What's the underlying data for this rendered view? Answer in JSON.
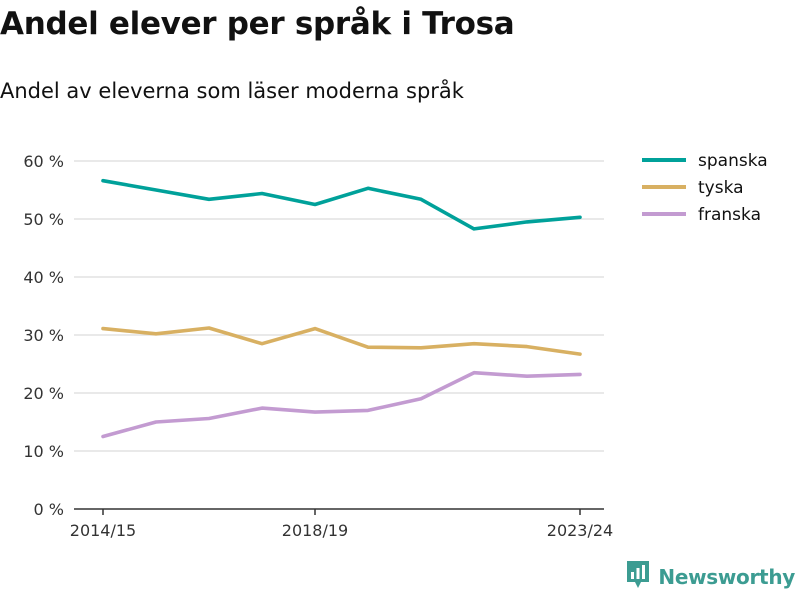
{
  "chart_data": {
    "type": "line",
    "title": "Andel elever per språk i Trosa",
    "subtitle": "Andel av eleverna som läser moderna språk",
    "x": [
      "2014/15",
      "2015/16",
      "2016/17",
      "2017/18",
      "2018/19",
      "2019/20",
      "2020/21",
      "2021/22",
      "2022/23",
      "2023/24"
    ],
    "x_tick_labels": [
      "2014/15",
      "2018/19",
      "2023/24"
    ],
    "y_ticks": [
      0,
      10,
      20,
      30,
      40,
      50,
      60
    ],
    "y_tick_suffix": " %",
    "ylim": [
      0,
      60
    ],
    "grid": true,
    "legend_position": "top-right",
    "series": [
      {
        "name": "spanska",
        "color": "#00a19a",
        "values": [
          56.6,
          55.0,
          53.4,
          54.4,
          52.5,
          55.3,
          53.4,
          48.3,
          49.5,
          50.3
        ]
      },
      {
        "name": "tyska",
        "color": "#d8b062",
        "values": [
          31.1,
          30.2,
          31.2,
          28.5,
          31.1,
          27.9,
          27.8,
          28.5,
          28.0,
          26.7
        ]
      },
      {
        "name": "franska",
        "color": "#c39bd1",
        "values": [
          12.5,
          15.0,
          15.6,
          17.4,
          16.7,
          17.0,
          19.0,
          23.5,
          22.9,
          23.2
        ]
      }
    ]
  },
  "brand": {
    "name": "Newsworthy",
    "icon": "newsworthy-logo-icon",
    "color": "#3c9c92"
  }
}
